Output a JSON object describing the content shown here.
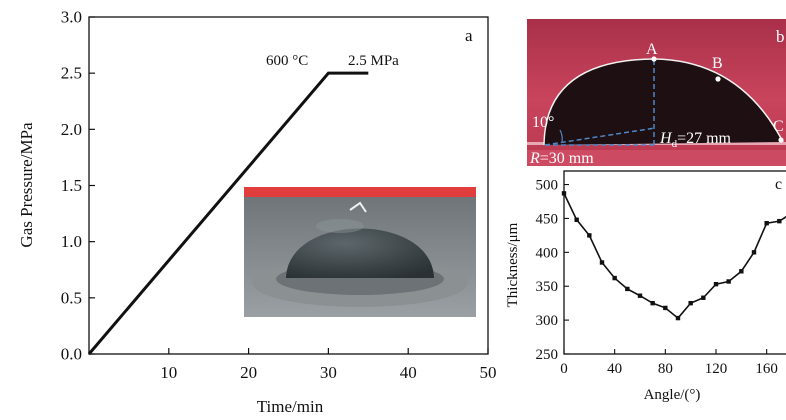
{
  "chart_data": [
    {
      "panel": "a",
      "type": "line",
      "xlabel": "Time/min",
      "ylabel": "Gas Pressure/MPa",
      "xlim": [
        0,
        50
      ],
      "ylim": [
        0,
        3.0
      ],
      "xticks": [
        "10",
        "20",
        "30",
        "40",
        "50"
      ],
      "yticks": [
        "0.0",
        "0.5",
        "1.0",
        "1.5",
        "2.0",
        "2.5",
        "3.0"
      ],
      "grid": false,
      "series": [
        {
          "x": [
            0,
            30,
            35
          ],
          "y": [
            0,
            2.5,
            2.5
          ]
        }
      ],
      "annotations": [
        "600 °C",
        "2.5 MPa"
      ],
      "inset_photo": "bulged dome sample"
    },
    {
      "panel": "b",
      "type": "other",
      "point_labels": [
        "A",
        "B",
        "C"
      ],
      "angle_label": "10°",
      "height_label_symbol": "H",
      "height_label_subscript": "d",
      "height_label_value": "=27 mm",
      "radius_label_symbol": "R",
      "radius_label_value": "=30 mm"
    },
    {
      "panel": "c",
      "type": "line",
      "xlabel": "Angle/(°)",
      "ylabel": "Thickness/μm",
      "xlim": [
        0,
        180
      ],
      "ylim": [
        250,
        520
      ],
      "xticks": [
        "0",
        "40",
        "80",
        "120",
        "160"
      ],
      "yticks": [
        "250",
        "300",
        "350",
        "400",
        "450",
        "500"
      ],
      "grid": false,
      "series": [
        {
          "x": [
            0,
            10,
            20,
            30,
            40,
            50,
            60,
            70,
            80,
            90,
            100,
            110,
            120,
            130,
            140,
            150,
            160,
            170,
            180
          ],
          "y": [
            487,
            448,
            425,
            385,
            362,
            346,
            336,
            325,
            318,
            303,
            325,
            333,
            353,
            357,
            372,
            400,
            443,
            446,
            458
          ]
        }
      ]
    }
  ],
  "colors": {
    "axis": "#111111",
    "line": "#111111",
    "photo_bg": "#c7405a",
    "droplet": "#1d0f12",
    "annotation_text": "#ffffff",
    "guide_dash": "#4f86c6"
  },
  "panel_labels": {
    "a": "a",
    "b": "b",
    "c": "c"
  }
}
